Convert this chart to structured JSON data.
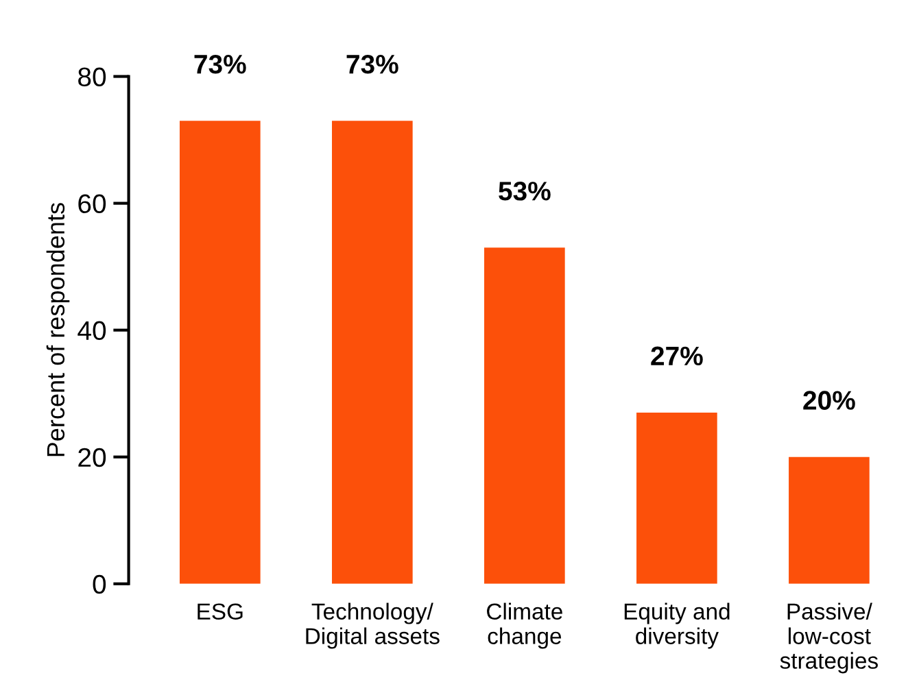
{
  "chart_data": {
    "type": "bar",
    "ylabel": "Percent of respondents",
    "categories": [
      "ESG",
      "Technology/\nDigital assets",
      "Climate\nchange",
      "Equity and\ndiversity",
      "Passive/\nlow-cost\nstrategies"
    ],
    "values": [
      73,
      73,
      53,
      27,
      20
    ],
    "value_labels": [
      "73%",
      "73%",
      "53%",
      "27%",
      "20%"
    ],
    "color": "#fc500a",
    "ylim": [
      0,
      80
    ],
    "yticks": [
      0,
      20,
      40,
      60,
      80
    ],
    "grid": false,
    "legend": false
  }
}
